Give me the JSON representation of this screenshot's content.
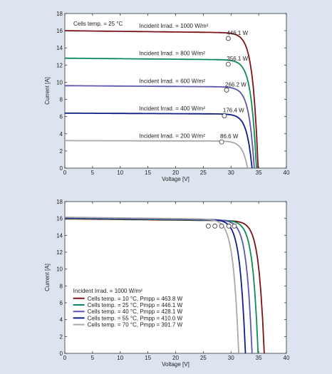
{
  "chart_data": [
    {
      "type": "line",
      "xlabel": "Voltage [V]",
      "ylabel": "Current [A]",
      "xlim": [
        0,
        40
      ],
      "ylim": [
        0,
        18
      ],
      "xticks": [
        0,
        5,
        10,
        15,
        20,
        25,
        30,
        35,
        40
      ],
      "yticks": [
        0,
        2,
        4,
        6,
        8,
        10,
        12,
        14,
        16,
        18
      ],
      "grid": false,
      "header_note": "Cells temp. = 25 °C",
      "series": [
        {
          "name": "Incident Irrad. = 1000 W/m²",
          "color": "#7a1318",
          "isc": 16.0,
          "voc": 34.9,
          "mpp_label": "446.1 W",
          "mpp": [
            29.5,
            15.1
          ]
        },
        {
          "name": "Incident Irrad. = 800 W/m²",
          "color": "#0d8a57",
          "isc": 12.8,
          "voc": 34.6,
          "mpp_label": "356.1 W",
          "mpp": [
            29.5,
            12.1
          ]
        },
        {
          "name": "Incident Irrad. = 600 W/m²",
          "color": "#5b57ad",
          "isc": 9.6,
          "voc": 34.2,
          "mpp_label": "266.2 W",
          "mpp": [
            29.2,
            9.1
          ]
        },
        {
          "name": "Incident Irrad. = 400 W/m²",
          "color": "#101e8a",
          "isc": 6.4,
          "voc": 33.8,
          "mpp_label": "176.4 W",
          "mpp": [
            28.8,
            6.1
          ]
        },
        {
          "name": "Incident Irrad. = 200 W/m²",
          "color": "#a8a8a8",
          "isc": 3.2,
          "voc": 33.0,
          "mpp_label": "86.6 W",
          "mpp": [
            28.3,
            3.05
          ]
        }
      ]
    },
    {
      "type": "line",
      "xlabel": "Voltage [V]",
      "ylabel": "Current [A]",
      "xlim": [
        0,
        40
      ],
      "ylim": [
        0,
        18
      ],
      "xticks": [
        0,
        5,
        10,
        15,
        20,
        25,
        30,
        35,
        40
      ],
      "yticks": [
        0,
        2,
        4,
        6,
        8,
        10,
        12,
        14,
        16,
        18
      ],
      "grid": false,
      "legend_title": "Incident Irrad. = 1000 W/m²",
      "legend_placement": "lower-left",
      "series": [
        {
          "name": "Cells temp. = 10 °C,  Pmpp = 463.8 W",
          "color": "#7a1318",
          "isc": 15.95,
          "voc": 36.0,
          "mpp": [
            30.6,
            15.1
          ]
        },
        {
          "name": "Cells temp. = 25 °C,  Pmpp = 446.1 W",
          "color": "#0d8a57",
          "isc": 16.0,
          "voc": 34.9,
          "mpp": [
            29.6,
            15.1
          ]
        },
        {
          "name": "Cells temp. = 40 °C,  Pmpp = 428.1 W",
          "color": "#5b57ad",
          "isc": 16.05,
          "voc": 33.8,
          "mpp": [
            28.3,
            15.1
          ]
        },
        {
          "name": "Cells temp. = 55 °C,  Pmpp = 410.0 W",
          "color": "#101e8a",
          "isc": 16.1,
          "voc": 32.6,
          "mpp": [
            27.1,
            15.1
          ]
        },
        {
          "name": "Cells temp. = 70 °C,  Pmpp = 391.7 W",
          "color": "#a8a8a8",
          "isc": 16.15,
          "voc": 31.4,
          "mpp": [
            25.9,
            15.1
          ]
        }
      ]
    }
  ]
}
